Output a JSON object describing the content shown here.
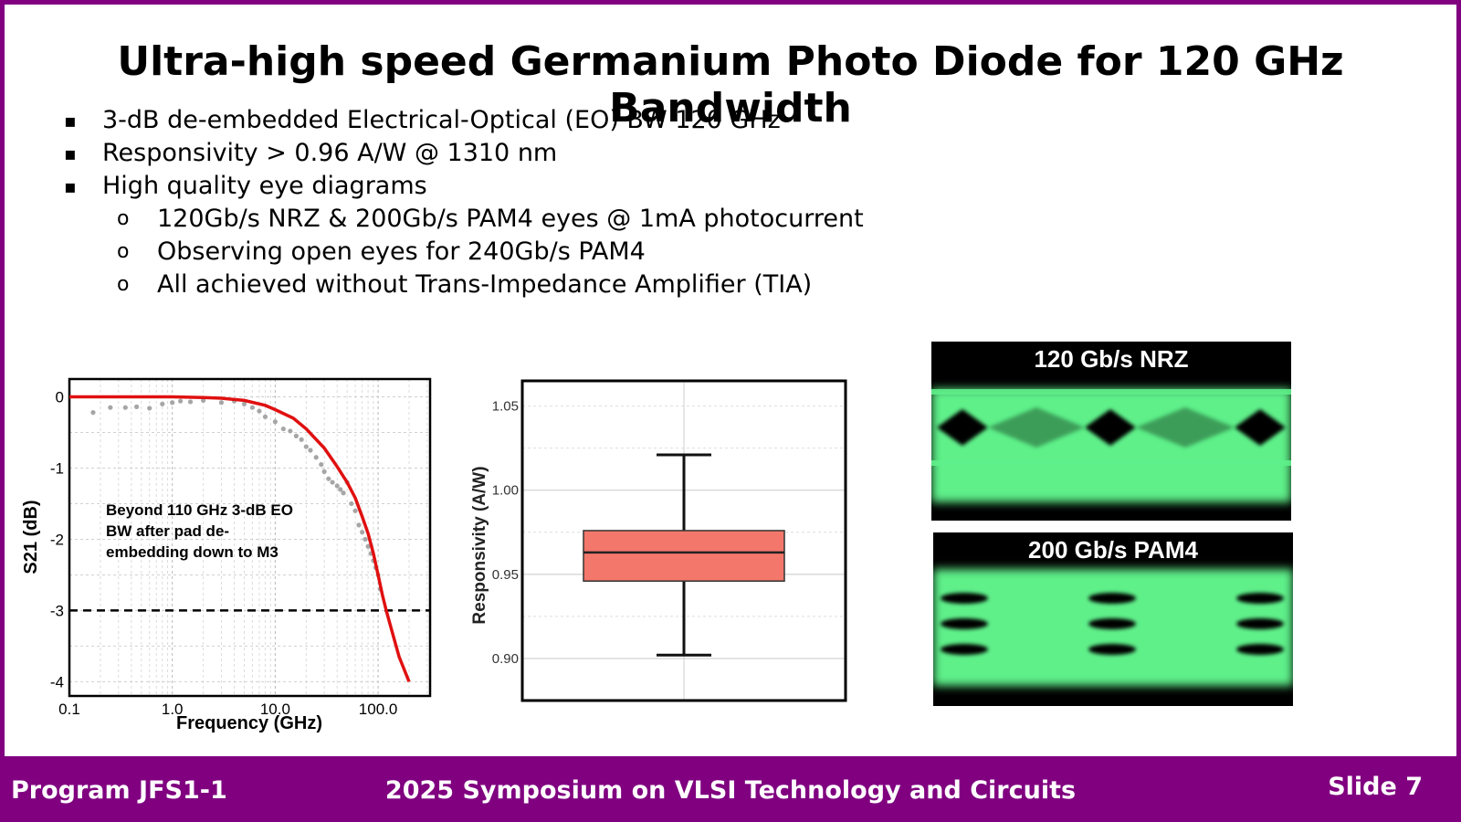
{
  "slide": {
    "title": "Ultra-high speed Germanium Photo Diode for 120 GHz Bandwidth",
    "bullets": [
      {
        "level": 1,
        "marker": "▪",
        "text": "3-dB de-embedded Electrical-Optical (EO) BW 120 GHz"
      },
      {
        "level": 1,
        "marker": "▪",
        "text": "Responsivity > 0.96 A/W @ 1310 nm"
      },
      {
        "level": 1,
        "marker": "▪",
        "text": "High quality eye diagrams"
      },
      {
        "level": 2,
        "marker": "o",
        "text": "120Gb/s NRZ & 200Gb/s PAM4 eyes @ 1mA photocurrent"
      },
      {
        "level": 2,
        "marker": "o",
        "text": "Observing open eyes for 240Gb/s PAM4"
      },
      {
        "level": 2,
        "marker": "o",
        "text": "All achieved without Trans-Impedance Amplifier (TIA)"
      }
    ]
  },
  "footer": {
    "left": "Program JFS1-1",
    "center": "2025 Symposium on VLSI Technology and Circuits",
    "right": "Slide 7"
  },
  "colors": {
    "accent": "#800080",
    "curve": "#e01010",
    "box_fill": "#f4776b",
    "eye_green": "#5ef08a"
  },
  "chart_data": [
    {
      "type": "line",
      "title": "",
      "xlabel": "Frequency  (GHz)",
      "ylabel": "S21 (dB)",
      "x_scale": "log",
      "xlim": [
        0.1,
        320
      ],
      "ylim": [
        -4.2,
        0.25
      ],
      "x_ticks": [
        0.1,
        1.0,
        10.0,
        100.0
      ],
      "x_tick_labels": [
        "0.1",
        "1.0",
        "10.0",
        "100.0"
      ],
      "y_ticks": [
        0,
        -1,
        -2,
        -3,
        -4
      ],
      "y_tick_labels": [
        "0",
        "-1",
        "-2",
        "-3",
        "-4"
      ],
      "grid": true,
      "annotation": [
        "Beyond 110 GHz 3-dB EO",
        "BW after pad de-",
        "embedding down to M3"
      ],
      "series": [
        {
          "name": "fit",
          "style": "line",
          "x": [
            0.1,
            0.5,
            1,
            2,
            3,
            5,
            8,
            10,
            15,
            20,
            30,
            40,
            50,
            60,
            70,
            80,
            90,
            100,
            110,
            120,
            140,
            160,
            200
          ],
          "y": [
            0,
            0,
            0,
            -0.01,
            -0.02,
            -0.05,
            -0.12,
            -0.18,
            -0.3,
            -0.45,
            -0.72,
            -0.98,
            -1.2,
            -1.42,
            -1.68,
            -1.92,
            -2.2,
            -2.5,
            -2.78,
            -3.0,
            -3.35,
            -3.65,
            -4.0
          ]
        },
        {
          "name": "measured",
          "style": "scatter",
          "x": [
            0.17,
            0.25,
            0.35,
            0.45,
            0.6,
            0.8,
            1.0,
            1.2,
            1.5,
            2,
            3,
            4,
            5,
            6,
            7,
            8,
            10,
            12,
            14,
            16,
            18,
            20,
            22,
            25,
            28,
            30,
            33,
            36,
            40,
            43,
            46,
            50,
            55,
            60,
            65,
            70,
            75,
            80,
            85,
            90,
            95,
            100,
            105
          ],
          "y": [
            -0.22,
            -0.15,
            -0.15,
            -0.14,
            -0.16,
            -0.1,
            -0.08,
            -0.06,
            -0.07,
            -0.05,
            -0.08,
            -0.06,
            -0.1,
            -0.15,
            -0.2,
            -0.28,
            -0.35,
            -0.45,
            -0.48,
            -0.55,
            -0.6,
            -0.7,
            -0.75,
            -0.85,
            -0.95,
            -1.05,
            -1.15,
            -1.2,
            -1.25,
            -1.3,
            -1.35,
            -1.2,
            -1.5,
            -1.6,
            -1.8,
            -1.9,
            -2.0,
            -2.1,
            -2.2,
            -2.3,
            -2.4,
            -2.5,
            -2.7
          ]
        },
        {
          "name": "-3 dB",
          "style": "dashed",
          "y": -3
        }
      ]
    },
    {
      "type": "box",
      "ylabel": "Responsivity (A/W)",
      "ylim": [
        0.875,
        1.065
      ],
      "y_ticks": [
        0.9,
        0.95,
        1.0,
        1.05
      ],
      "y_tick_labels": [
        "0.90",
        "0.95",
        "1.00",
        "1.05"
      ],
      "min": 0.902,
      "q1": 0.946,
      "median": 0.963,
      "q3": 0.976,
      "max": 1.021
    },
    {
      "type": "image",
      "panels": [
        {
          "label": "120 Gb/s NRZ",
          "format": "NRZ",
          "levels": 2
        },
        {
          "label": "200 Gb/s PAM4",
          "format": "PAM4",
          "levels": 4
        }
      ]
    }
  ]
}
